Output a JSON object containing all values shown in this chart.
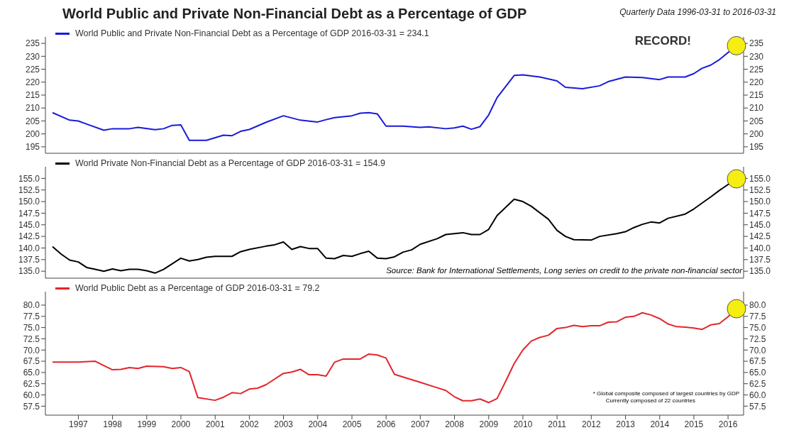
{
  "chart_data": [
    {
      "type": "line",
      "title": "World Public and Private Non-Financial Debt as a Percentage of GDP",
      "subtitle": "Quarterly Data 1996-03-31 to 2016-03-31",
      "annotations": [
        "RECORD!"
      ],
      "legend": "top left",
      "tick_labels": "y",
      "xlim": [
        "1996-01-15",
        "2016-06-15"
      ],
      "ylim": [
        192.5,
        237.5
      ],
      "yticks": [
        195,
        200,
        205,
        210,
        215,
        220,
        225,
        230,
        235
      ],
      "y2lim": [
        192.5,
        237.5
      ],
      "y2ticks": [
        195,
        200,
        205,
        210,
        215,
        220,
        225,
        230,
        235
      ],
      "series": [
        {
          "name": "World Public and Private Non-Financial Debt as a Percentage of GDP 2016-03-31 = 234.1",
          "color": "#1a1adb",
          "x": [
            "1996-03-31",
            "1996-09-30",
            "1996-12-31",
            "1997-03-31",
            "1997-09-30",
            "1997-12-31",
            "1998-06-30",
            "1998-09-30",
            "1999-03-31",
            "1999-06-30",
            "1999-09-30",
            "1999-12-31",
            "2000-03-31",
            "2000-09-30",
            "2001-03-31",
            "2001-06-30",
            "2001-09-30",
            "2001-12-31",
            "2002-06-30",
            "2002-12-31",
            "2003-06-30",
            "2003-12-31",
            "2004-03-31",
            "2004-06-30",
            "2004-12-31",
            "2005-03-31",
            "2005-06-30",
            "2005-09-30",
            "2005-12-31",
            "2006-06-30",
            "2006-12-31",
            "2007-03-31",
            "2007-09-30",
            "2007-12-31",
            "2008-03-31",
            "2008-06-30",
            "2008-09-30",
            "2008-12-31",
            "2009-03-31",
            "2009-09-30",
            "2009-12-31",
            "2010-06-30",
            "2010-12-31",
            "2011-03-31",
            "2011-09-30",
            "2012-03-31",
            "2012-06-30",
            "2012-12-31",
            "2013-06-30",
            "2013-12-31",
            "2014-03-31",
            "2014-09-30",
            "2014-12-31",
            "2015-03-31",
            "2015-06-30",
            "2015-09-30",
            "2016-03-31"
          ],
          "values": [
            208.2,
            205.3,
            205.0,
            203.8,
            201.4,
            202,
            202,
            202.5,
            201.6,
            202,
            203.3,
            203.5,
            197.5,
            197.5,
            199.5,
            199.3,
            201,
            201.7,
            204.5,
            207,
            205.3,
            204.6,
            205.5,
            206.3,
            207,
            208,
            208.2,
            207.7,
            203,
            203,
            202.5,
            202.7,
            202,
            202.3,
            203,
            201.8,
            202.8,
            207.3,
            214,
            222.6,
            222.8,
            222,
            220.5,
            218,
            217.5,
            218.6,
            220.2,
            222,
            221.8,
            221,
            222,
            222,
            223.3,
            225.4,
            226.6,
            228.7,
            234.1
          ]
        }
      ]
    },
    {
      "type": "line",
      "annotations": [
        "Source: Bank for International Settlements, Long series on credit to the private non-financial sector"
      ],
      "legend": "top left",
      "tick_labels": "y",
      "xlim": [
        "1996-01-15",
        "2016-06-15"
      ],
      "ylim": [
        133.5,
        157.5
      ],
      "yticks": [
        {
          "value": 135,
          "label": "135.0"
        },
        137.5,
        {
          "value": 140,
          "label": "140.0"
        },
        142.5,
        {
          "value": 145,
          "label": "145.0"
        },
        147.5,
        {
          "value": 150,
          "label": "150.0"
        },
        152.5,
        {
          "value": 155,
          "label": "155.0"
        }
      ],
      "y2lim": [
        133.5,
        157.5
      ],
      "y2ticks": [
        {
          "value": 135,
          "label": "135.0"
        },
        137.5,
        {
          "value": 140,
          "label": "140.0"
        },
        142.5,
        {
          "value": 145,
          "label": "145.0"
        },
        147.5,
        {
          "value": 150,
          "label": "150.0"
        },
        152.5,
        {
          "value": 155,
          "label": "155.0"
        }
      ],
      "series": [
        {
          "name": "World Private Non-Financial Debt as a Percentage of GDP 2016-03-31 = 154.9",
          "color": "#000000",
          "x": [
            "1996-03-31",
            "1996-06-30",
            "1996-09-30",
            "1996-12-31",
            "1997-03-31",
            "1997-06-30",
            "1997-09-30",
            "1997-12-31",
            "1998-03-31",
            "1998-06-30",
            "1998-09-30",
            "1998-12-31",
            "1999-03-31",
            "1999-06-30",
            "1999-12-31",
            "2000-03-31",
            "2000-06-30",
            "2000-09-30",
            "2000-12-31",
            "2001-06-30",
            "2001-09-30",
            "2001-12-31",
            "2002-06-30",
            "2002-09-30",
            "2002-12-31",
            "2003-03-31",
            "2003-06-30",
            "2003-09-30",
            "2003-12-31",
            "2004-03-31",
            "2004-06-30",
            "2004-09-30",
            "2004-12-31",
            "2005-03-31",
            "2005-06-30",
            "2005-09-30",
            "2005-12-31",
            "2006-03-31",
            "2006-06-30",
            "2006-09-30",
            "2006-12-31",
            "2007-06-30",
            "2007-09-30",
            "2008-03-31",
            "2008-06-30",
            "2008-09-30",
            "2008-12-31",
            "2009-03-31",
            "2009-09-30",
            "2009-12-31",
            "2010-03-31",
            "2010-09-30",
            "2010-12-31",
            "2011-03-31",
            "2011-06-30",
            "2011-12-31",
            "2012-03-31",
            "2012-09-30",
            "2012-12-31",
            "2013-03-31",
            "2013-06-30",
            "2013-09-30",
            "2013-12-31",
            "2014-03-31",
            "2014-09-30",
            "2014-12-31",
            "2015-03-31",
            "2015-06-30",
            "2015-09-30",
            "2016-03-31"
          ],
          "values": [
            140.3,
            138.7,
            137.4,
            137.0,
            135.8,
            135.4,
            135.0,
            135.5,
            135.1,
            135.4,
            135.4,
            135.1,
            134.6,
            135.4,
            137.8,
            137.2,
            137.5,
            138.0,
            138.2,
            138.2,
            139.2,
            139.7,
            140.4,
            140.7,
            141.3,
            139.7,
            140.3,
            139.9,
            139.9,
            137.8,
            137.7,
            138.4,
            138.2,
            138.8,
            139.3,
            137.8,
            137.7,
            138.1,
            139.1,
            139.6,
            140.8,
            142.0,
            142.9,
            143.3,
            142.9,
            142.9,
            144.0,
            147.0,
            150.5,
            150.0,
            149.0,
            146.2,
            143.8,
            142.5,
            141.8,
            141.7,
            142.5,
            143.1,
            143.5,
            144.4,
            145.1,
            145.6,
            145.4,
            146.4,
            147.3,
            148.4,
            149.7,
            151.0,
            152.4,
            154.9
          ]
        }
      ]
    },
    {
      "type": "line",
      "annotations": [
        "* Global composite composed of largest countries by GDP",
        "Currently composed of 22 countries"
      ],
      "legend": "top left",
      "xlim": [
        "1996-01-15",
        "2016-06-15"
      ],
      "xticks": [
        "1997",
        "1998",
        "1999",
        "2000",
        "2001",
        "2002",
        "2003",
        "2004",
        "2005",
        "2006",
        "2007",
        "2008",
        "2009",
        "2010",
        "2011",
        "2012",
        "2013",
        "2014",
        "2015",
        "2016"
      ],
      "ylim": [
        55.5,
        83
      ],
      "yticks": [
        57.5,
        {
          "value": 60,
          "label": "60.0"
        },
        62.5,
        {
          "value": 65,
          "label": "65.0"
        },
        67.5,
        {
          "value": 70,
          "label": "70.0"
        },
        72.5,
        {
          "value": 75,
          "label": "75.0"
        },
        77.5,
        {
          "value": 80,
          "label": "80.0"
        }
      ],
      "y2lim": [
        55.5,
        83
      ],
      "y2ticks": [
        57.5,
        {
          "value": 60,
          "label": "60.0"
        },
        62.5,
        {
          "value": 65,
          "label": "65.0"
        },
        67.5,
        {
          "value": 70,
          "label": "70.0"
        },
        72.5,
        {
          "value": 75,
          "label": "75.0"
        },
        77.5,
        {
          "value": 80,
          "label": "80.0"
        }
      ],
      "series": [
        {
          "name": "World Public Debt as a Percentage of GDP 2016-03-31 = 79.2",
          "color": "#e3262b",
          "x": [
            "1996-03-31",
            "1996-12-31",
            "1997-06-30",
            "1997-12-31",
            "1998-03-31",
            "1998-06-30",
            "1998-09-30",
            "1998-12-31",
            "1999-06-30",
            "1999-09-30",
            "1999-12-31",
            "2000-03-31",
            "2000-06-30",
            "2000-12-31",
            "2001-03-31",
            "2001-06-30",
            "2001-09-30",
            "2001-12-31",
            "2002-03-31",
            "2002-06-30",
            "2002-12-31",
            "2003-03-31",
            "2003-06-30",
            "2003-09-30",
            "2003-12-31",
            "2004-03-31",
            "2004-06-30",
            "2004-09-30",
            "2005-03-31",
            "2005-06-30",
            "2005-09-30",
            "2005-12-31",
            "2006-03-31",
            "2006-06-30",
            "2006-12-31",
            "2007-06-30",
            "2007-09-30",
            "2007-12-31",
            "2008-03-31",
            "2008-06-30",
            "2008-09-30",
            "2008-12-31",
            "2009-03-31",
            "2009-06-30",
            "2009-09-30",
            "2009-12-31",
            "2010-03-31",
            "2010-06-30",
            "2010-09-30",
            "2010-12-31",
            "2011-03-31",
            "2011-06-30",
            "2011-09-30",
            "2011-12-31",
            "2012-03-31",
            "2012-06-30",
            "2012-09-30",
            "2012-12-31",
            "2013-03-31",
            "2013-06-30",
            "2013-09-30",
            "2013-12-31",
            "2014-03-31",
            "2014-06-30",
            "2014-09-30",
            "2014-12-31",
            "2015-03-31",
            "2015-06-30",
            "2015-09-30",
            "2015-12-31",
            "2016-03-31"
          ],
          "values": [
            67.3,
            67.3,
            67.5,
            65.6,
            65.7,
            66.1,
            65.9,
            66.4,
            66.3,
            65.9,
            66.1,
            65.2,
            59.4,
            58.8,
            59.5,
            60.5,
            60.3,
            61.3,
            61.5,
            62.3,
            64.8,
            65.1,
            65.7,
            64.5,
            64.5,
            64.2,
            67.3,
            68.0,
            68.0,
            69.1,
            68.9,
            68.2,
            64.6,
            64.0,
            62.8,
            61.6,
            61.0,
            59.6,
            58.7,
            58.7,
            59.1,
            58.3,
            59.2,
            63.0,
            67.0,
            70.0,
            72.0,
            72.8,
            73.3,
            74.8,
            75.0,
            75.5,
            75.2,
            75.4,
            75.4,
            76.2,
            76.3,
            77.3,
            77.5,
            78.3,
            77.8,
            77.0,
            75.8,
            75.2,
            75.1,
            74.9,
            74.6,
            75.6,
            75.9,
            77.4,
            79.2
          ]
        }
      ]
    }
  ]
}
